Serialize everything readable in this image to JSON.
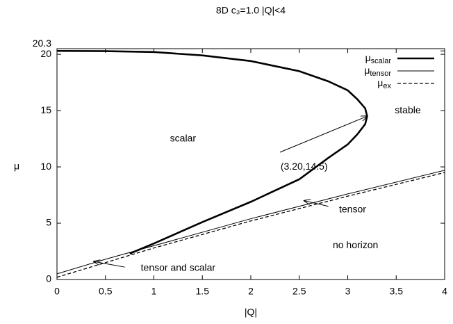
{
  "chart_data": {
    "type": "line",
    "title": "8D c₃=1.0 |Q|<4",
    "xlabel": "|Q|",
    "ylabel": "μ",
    "xlim": [
      0,
      4
    ],
    "ylim": [
      0,
      20.5
    ],
    "xticks": [
      0,
      0.5,
      1,
      1.5,
      2,
      2.5,
      3,
      3.5,
      4
    ],
    "yticks": [
      0,
      5,
      10,
      15,
      20,
      20.3
    ],
    "grid": false,
    "legend": "top-right",
    "series": [
      {
        "name": "μ",
        "subscript": "scalar",
        "color": "#000000",
        "width": 2.6,
        "dash": "none",
        "x": [
          0,
          0.5,
          1,
          1.5,
          2,
          2.5,
          2.8,
          3,
          3.1,
          3.18,
          3.2,
          3.18,
          3.1,
          3.0,
          2.8,
          2.5,
          2.0,
          1.5,
          1.0,
          0.75
        ],
        "y": [
          20.3,
          20.28,
          20.2,
          19.9,
          19.4,
          18.5,
          17.6,
          16.8,
          16.0,
          15.2,
          14.5,
          13.8,
          12.9,
          12.0,
          10.8,
          8.9,
          6.9,
          5.1,
          3.2,
          2.3
        ]
      },
      {
        "name": "μ",
        "subscript": "tensor",
        "color": "#000000",
        "width": 1,
        "dash": "none",
        "x": [
          0,
          0.5,
          1,
          2,
          3,
          4
        ],
        "y": [
          0.5,
          1.8,
          3.0,
          5.4,
          7.6,
          9.7
        ]
      },
      {
        "name": "μ",
        "subscript": "ex",
        "color": "#000000",
        "width": 1.3,
        "dash": "5,3",
        "x": [
          0,
          0.5,
          1,
          2,
          3,
          4
        ],
        "y": [
          0.2,
          1.5,
          2.8,
          5.2,
          7.4,
          9.5
        ]
      }
    ],
    "annotations": [
      {
        "text": "scalar",
        "x": 1.3,
        "y": 12.5
      },
      {
        "text": "stable",
        "x": 3.62,
        "y": 15
      },
      {
        "text": "no horizon",
        "x": 3.08,
        "y": 3
      },
      {
        "text": "(3.20,14.5)",
        "x": 2.55,
        "y": 10,
        "arrow_from": [
          2.3,
          11.3
        ],
        "arrow_to": [
          3.2,
          14.5
        ]
      },
      {
        "text": "tensor",
        "x": 3.05,
        "y": 6.2,
        "arrow_from": [
          2.8,
          6.5
        ],
        "arrow_to": [
          2.55,
          7.0
        ]
      },
      {
        "text": "tensor and scalar",
        "x": 1.25,
        "y": 1.0,
        "arrow_from": [
          0.7,
          1.1
        ],
        "arrow_to": [
          0.38,
          1.6
        ]
      }
    ]
  }
}
